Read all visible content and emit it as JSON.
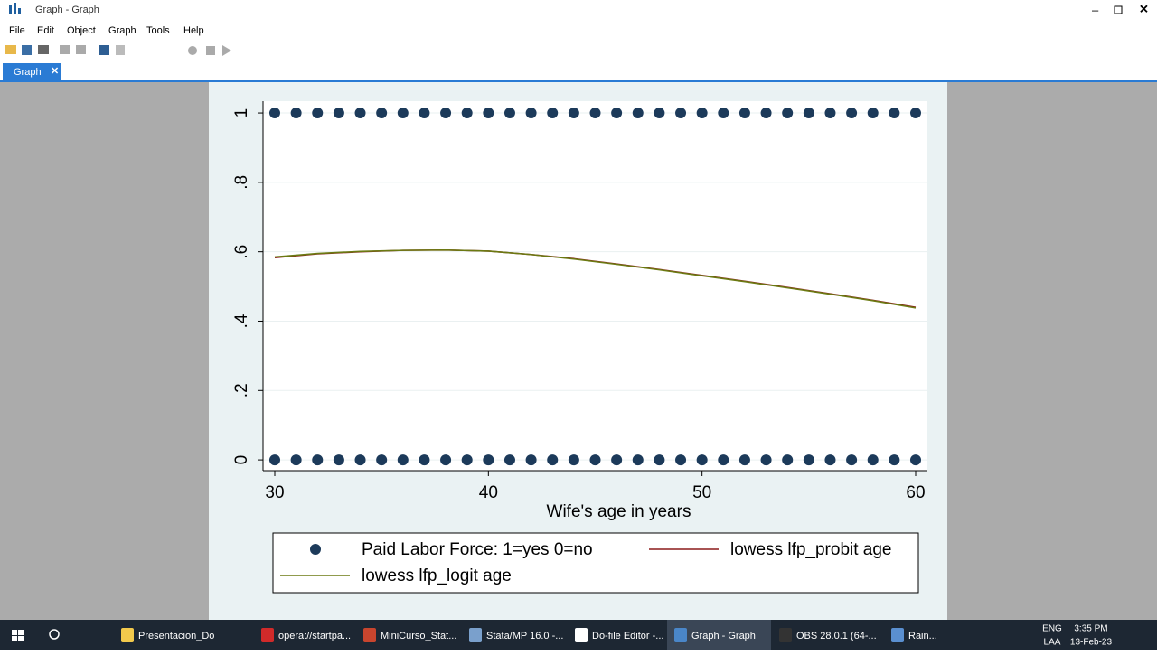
{
  "window": {
    "title": "Graph - Graph",
    "menu": [
      "File",
      "Edit",
      "Object",
      "Graph",
      "Tools",
      "Help"
    ],
    "tab": "Graph"
  },
  "chart_data": {
    "type": "scatter",
    "xlabel": "Wife's age in years",
    "xlim": [
      29.45,
      60.55
    ],
    "xticks": [
      30,
      40,
      50,
      60
    ],
    "ylim": [
      -0.031,
      1.034
    ],
    "yticks": [
      0,
      {
        "value": 0.2,
        "label": ".2"
      },
      {
        "value": 0.4,
        "label": ".4"
      },
      {
        "value": 0.6,
        "label": ".6"
      },
      {
        "value": 0.8,
        "label": ".8"
      },
      1
    ],
    "grid": true,
    "series": [
      {
        "name": "Paid Labor Force: 1=yes 0=no",
        "type": "scatter",
        "color": "#1c3a5a",
        "x": [
          30,
          31,
          32,
          33,
          34,
          35,
          36,
          37,
          38,
          39,
          40,
          41,
          42,
          43,
          44,
          45,
          46,
          47,
          48,
          49,
          50,
          51,
          52,
          53,
          54,
          55,
          56,
          57,
          58,
          59,
          60,
          30,
          31,
          32,
          33,
          34,
          35,
          36,
          37,
          38,
          39,
          40,
          41,
          42,
          43,
          44,
          45,
          46,
          47,
          48,
          49,
          50,
          51,
          52,
          53,
          54,
          55,
          56,
          57,
          58,
          59,
          60
        ],
        "values": [
          1,
          1,
          1,
          1,
          1,
          1,
          1,
          1,
          1,
          1,
          1,
          1,
          1,
          1,
          1,
          1,
          1,
          1,
          1,
          1,
          1,
          1,
          1,
          1,
          1,
          1,
          1,
          1,
          1,
          1,
          1,
          0,
          0,
          0,
          0,
          0,
          0,
          0,
          0,
          0,
          0,
          0,
          0,
          0,
          0,
          0,
          0,
          0,
          0,
          0,
          0,
          0,
          0,
          0,
          0,
          0,
          0,
          0,
          0,
          0,
          0,
          0
        ]
      },
      {
        "name": "lowess lfp_probit age",
        "type": "line",
        "color": "#8b1a1a",
        "x": [
          30,
          32,
          34,
          36,
          38,
          40,
          42,
          44,
          46,
          48,
          50,
          52,
          54,
          56,
          58,
          60
        ],
        "values": [
          0.583,
          0.594,
          0.6,
          0.604,
          0.605,
          0.602,
          0.592,
          0.58,
          0.565,
          0.549,
          0.532,
          0.515,
          0.497,
          0.479,
          0.46,
          0.44
        ]
      },
      {
        "name": "lowess lfp_logit age",
        "type": "line",
        "color": "#6b7a12",
        "x": [
          30,
          32,
          34,
          36,
          38,
          40,
          42,
          44,
          46,
          48,
          50,
          52,
          54,
          56,
          58,
          60
        ],
        "values": [
          0.585,
          0.595,
          0.601,
          0.604,
          0.605,
          0.602,
          0.592,
          0.579,
          0.564,
          0.548,
          0.531,
          0.514,
          0.496,
          0.478,
          0.459,
          0.438
        ]
      }
    ]
  },
  "taskbar": {
    "items": [
      "Presentacion_Do",
      "opera://startpa...",
      "MiniCurso_Stat...",
      "Stata/MP 16.0 -...",
      "Do-file Editor -...",
      "Graph - Graph",
      "OBS 28.0.1 (64-...",
      "Rain..."
    ],
    "lang": [
      "ENG",
      "LAA"
    ],
    "time": "3:35 PM",
    "date": "13-Feb-23"
  }
}
